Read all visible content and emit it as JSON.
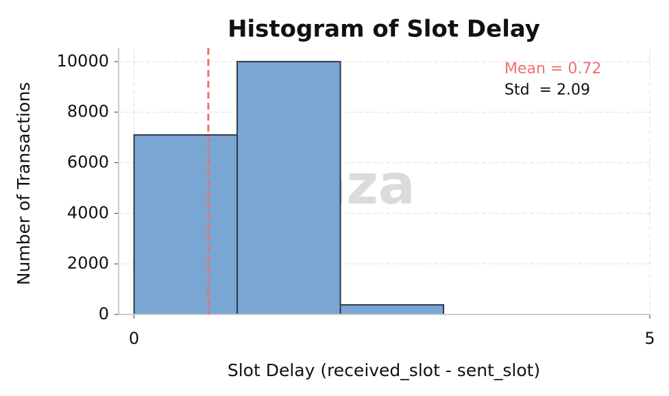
{
  "chart_data": {
    "type": "histogram",
    "title": "Histogram of Slot Delay",
    "x_label": "Slot Delay (received_slot - sent_slot)",
    "y_label": "Number of Transactions",
    "bins": [
      0,
      1,
      2,
      3
    ],
    "counts": [
      7100,
      10000,
      380
    ],
    "color": "#7aa6d3",
    "edge_color": "#2d3a4a",
    "xlim": [
      -0.15,
      5
    ],
    "xticks": [
      0,
      5
    ],
    "ylim": [
      0,
      10540
    ],
    "yticks": [
      0,
      2000,
      4000,
      6000,
      8000,
      10000
    ],
    "grid": true,
    "mean": 0.72,
    "mean_color": "#f07070",
    "mean_label": "Mean = 0.72",
    "std_label": "Std  = 2.09",
    "watermark": "anza"
  }
}
